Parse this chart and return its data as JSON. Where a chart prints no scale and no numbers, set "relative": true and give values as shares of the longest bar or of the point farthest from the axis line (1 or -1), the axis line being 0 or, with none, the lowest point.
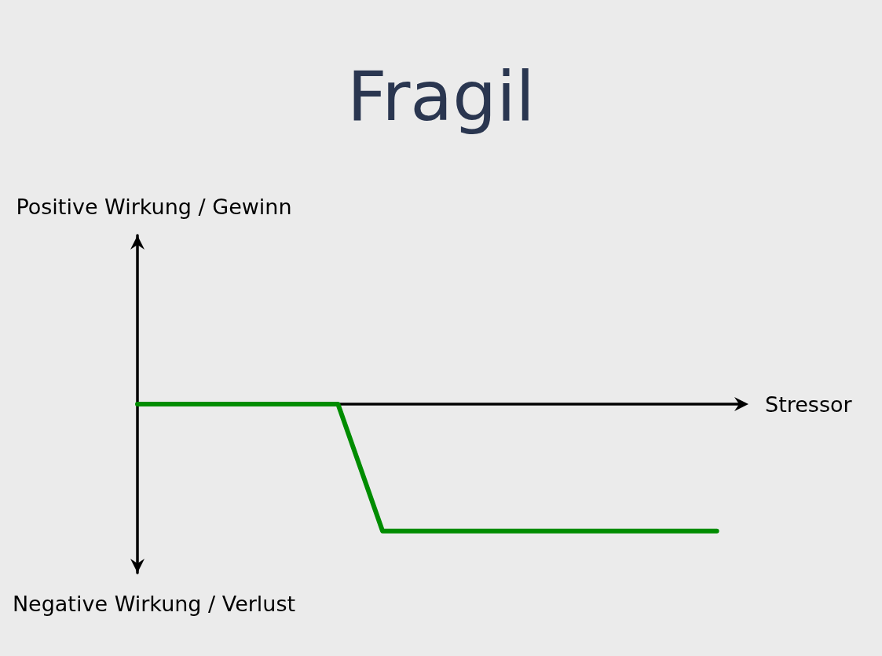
{
  "chart_data": {
    "type": "line",
    "title": "Fragil",
    "xlabel": "Stressor",
    "annotations": [
      "Positive Wirkung / Gewinn",
      "Negative Wirkung / Verlust"
    ],
    "categories": [
      null,
      null,
      null,
      null,
      null,
      null,
      null,
      null,
      null,
      null,
      null,
      null,
      null,
      null,
      null,
      null,
      null,
      null,
      null,
      null,
      null,
      null,
      null,
      null,
      null,
      null,
      null,
      null
    ],
    "values": [
      0,
      0,
      0,
      0,
      0,
      0,
      0,
      0,
      0,
      0,
      -0.5,
      -1,
      -1,
      -1,
      -1,
      -1,
      -1,
      -1,
      -1,
      -1,
      -1,
      -1,
      -1,
      -1,
      -1,
      -1,
      -1,
      null
    ],
    "color": "#008c00",
    "relative": true
  }
}
